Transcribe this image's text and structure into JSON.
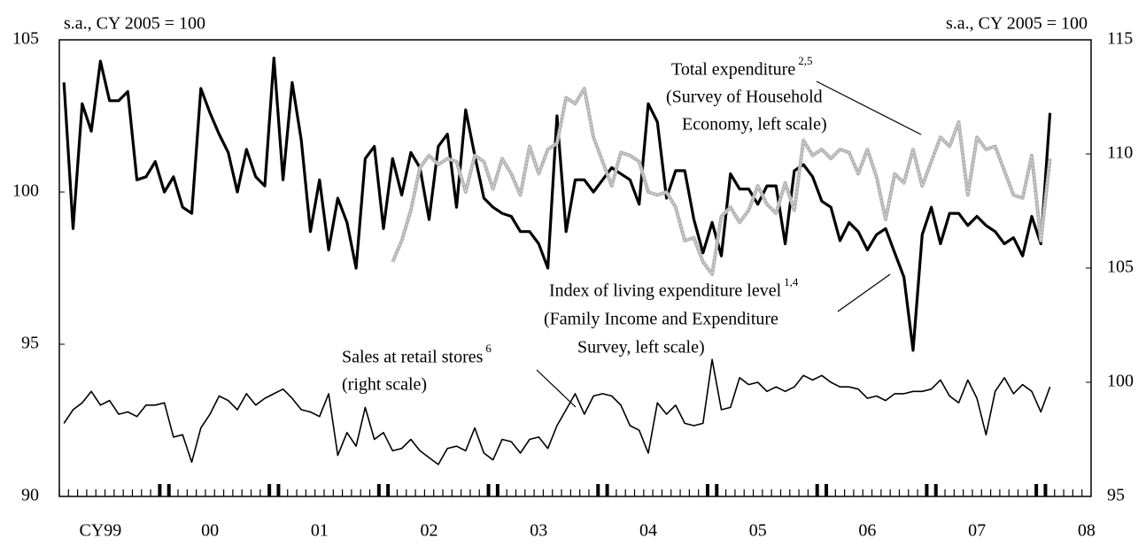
{
  "chart_data": {
    "type": "line",
    "categories": [
      null,
      null,
      null,
      null,
      "CY99",
      null,
      null,
      null,
      null,
      null,
      null,
      null,
      null,
      null,
      null,
      null,
      "00",
      null,
      null,
      null,
      null,
      null,
      null,
      null,
      null,
      null,
      null,
      null,
      "01",
      null,
      null,
      null,
      null,
      null,
      null,
      null,
      null,
      null,
      null,
      null,
      "02",
      null,
      null,
      null,
      null,
      null,
      null,
      null,
      null,
      null,
      null,
      null,
      "03",
      null,
      null,
      null,
      null,
      null,
      null,
      null,
      null,
      null,
      null,
      null,
      "04",
      null,
      null,
      null,
      null,
      null,
      null,
      null,
      null,
      null,
      null,
      null,
      "05",
      null,
      null,
      null,
      null,
      null,
      null,
      null,
      null,
      null,
      null,
      null,
      "06",
      null,
      null,
      null,
      null,
      null,
      null,
      null,
      null,
      null,
      null,
      null,
      "07",
      null,
      null,
      null,
      null,
      null,
      null,
      null,
      null,
      null,
      null,
      null,
      "08"
    ],
    "ylabel": "s.a., CY 2005 = 100",
    "y2label": "s.a., CY 2005 = 100",
    "ylim": [
      90,
      105
    ],
    "yticks": [
      90,
      95,
      100,
      105
    ],
    "y2lim": [
      95,
      115
    ],
    "y2ticks": [
      95,
      100,
      105,
      110,
      115
    ],
    "series": [
      {
        "name": "Index of living expenditure level",
        "color": "#000000",
        "axis": "y",
        "values": [
          103.6,
          98.8,
          102.9,
          102.0,
          104.3,
          103.0,
          103.0,
          103.3,
          100.4,
          100.5,
          101.0,
          100.0,
          100.5,
          99.5,
          99.3,
          103.4,
          102.6,
          101.9,
          101.3,
          100.0,
          101.4,
          100.5,
          100.2,
          104.4,
          100.4,
          103.6,
          101.7,
          98.7,
          100.4,
          98.1,
          99.8,
          99.0,
          97.5,
          101.1,
          101.5,
          98.8,
          101.1,
          99.9,
          101.3,
          100.8,
          99.1,
          101.5,
          101.9,
          99.5,
          102.7,
          101.2,
          99.8,
          99.5,
          99.3,
          99.2,
          98.7,
          98.7,
          98.3,
          97.5,
          102.5,
          98.7,
          100.4,
          100.4,
          100.0,
          100.4,
          100.8,
          100.6,
          100.4,
          99.6,
          102.9,
          102.3,
          99.8,
          100.7,
          100.7,
          99.1,
          98.0,
          99.0,
          97.9,
          100.6,
          100.1,
          100.1,
          99.6,
          100.2,
          100.2,
          98.3,
          100.7,
          100.9,
          100.5,
          99.7,
          99.5,
          98.4,
          99.0,
          98.7,
          98.1,
          98.6,
          98.8,
          98.0,
          97.2,
          94.8,
          98.6,
          99.5,
          98.3,
          99.3,
          99.3,
          98.9,
          99.2,
          98.9,
          98.7,
          98.3,
          98.5,
          97.9,
          99.2,
          98.3,
          102.6,
          null,
          null,
          null,
          null
        ]
      },
      {
        "name": "Total expenditure",
        "color": "#b3b3b3",
        "axis": "y",
        "values": [
          null,
          null,
          null,
          null,
          null,
          null,
          null,
          null,
          null,
          null,
          null,
          null,
          null,
          null,
          null,
          null,
          null,
          null,
          null,
          null,
          null,
          null,
          null,
          null,
          null,
          null,
          null,
          null,
          null,
          null,
          null,
          null,
          null,
          null,
          null,
          null,
          97.7,
          98.4,
          99.4,
          100.8,
          101.2,
          100.9,
          101.1,
          101.0,
          100.0,
          101.2,
          101.0,
          100.1,
          101.1,
          100.6,
          99.9,
          101.5,
          100.6,
          101.4,
          101.6,
          103.1,
          102.9,
          103.4,
          101.8,
          101.0,
          100.2,
          101.3,
          101.2,
          101.0,
          100.0,
          99.9,
          100.0,
          99.5,
          98.4,
          98.5,
          97.7,
          97.3,
          99.2,
          99.5,
          99.0,
          99.4,
          100.2,
          99.6,
          99.3,
          100.3,
          99.4,
          101.7,
          101.2,
          101.4,
          101.1,
          101.4,
          101.3,
          100.6,
          101.4,
          100.5,
          99.1,
          100.6,
          100.3,
          101.4,
          100.2,
          101.0,
          101.8,
          101.5,
          102.3,
          99.9,
          101.8,
          101.4,
          101.5,
          100.7,
          99.9,
          99.8,
          101.2,
          98.4,
          101.1,
          null,
          null,
          null,
          null
        ]
      },
      {
        "name": "Sales at retail stores",
        "color": "#000000",
        "axis": "y2",
        "values": [
          98.2,
          98.8,
          99.1,
          99.6,
          99.0,
          99.2,
          98.6,
          98.7,
          98.5,
          99.0,
          99.0,
          99.1,
          97.6,
          97.7,
          96.5,
          98.0,
          98.6,
          99.4,
          99.2,
          98.8,
          99.5,
          99.0,
          99.3,
          99.5,
          99.7,
          99.3,
          98.8,
          98.7,
          98.5,
          99.5,
          96.8,
          97.8,
          97.2,
          98.9,
          97.5,
          97.8,
          97.0,
          97.1,
          97.5,
          97.0,
          96.7,
          96.4,
          97.1,
          97.2,
          97.0,
          98.0,
          96.9,
          96.6,
          97.5,
          97.4,
          96.9,
          97.5,
          97.6,
          97.1,
          98.1,
          98.8,
          99.5,
          98.6,
          99.4,
          99.5,
          99.4,
          99.0,
          98.1,
          97.9,
          96.9,
          99.1,
          98.6,
          99.0,
          98.2,
          98.1,
          98.2,
          101.0,
          98.8,
          98.9,
          100.2,
          99.9,
          100.0,
          99.6,
          99.8,
          99.6,
          99.8,
          100.3,
          100.1,
          100.3,
          100.0,
          99.8,
          99.8,
          99.7,
          99.3,
          99.4,
          99.2,
          99.5,
          99.5,
          99.6,
          99.6,
          99.7,
          100.1,
          99.4,
          99.1,
          100.1,
          99.3,
          97.7,
          99.6,
          100.2,
          99.5,
          99.9,
          99.6,
          98.7,
          99.8,
          null,
          null,
          null,
          null
        ]
      }
    ],
    "annotations": [
      {
        "lines": [
          "Total expenditure",
          "(Survey of Household",
          "Economy, left scale)"
        ],
        "sup": "2,5"
      },
      {
        "lines": [
          "Index of living expenditure level",
          "(Family Income and Expenditure",
          "Survey, left scale)"
        ],
        "sup": "1,4"
      },
      {
        "lines": [
          "Sales at retail stores",
          "(right scale)"
        ],
        "sup": "6"
      }
    ]
  }
}
